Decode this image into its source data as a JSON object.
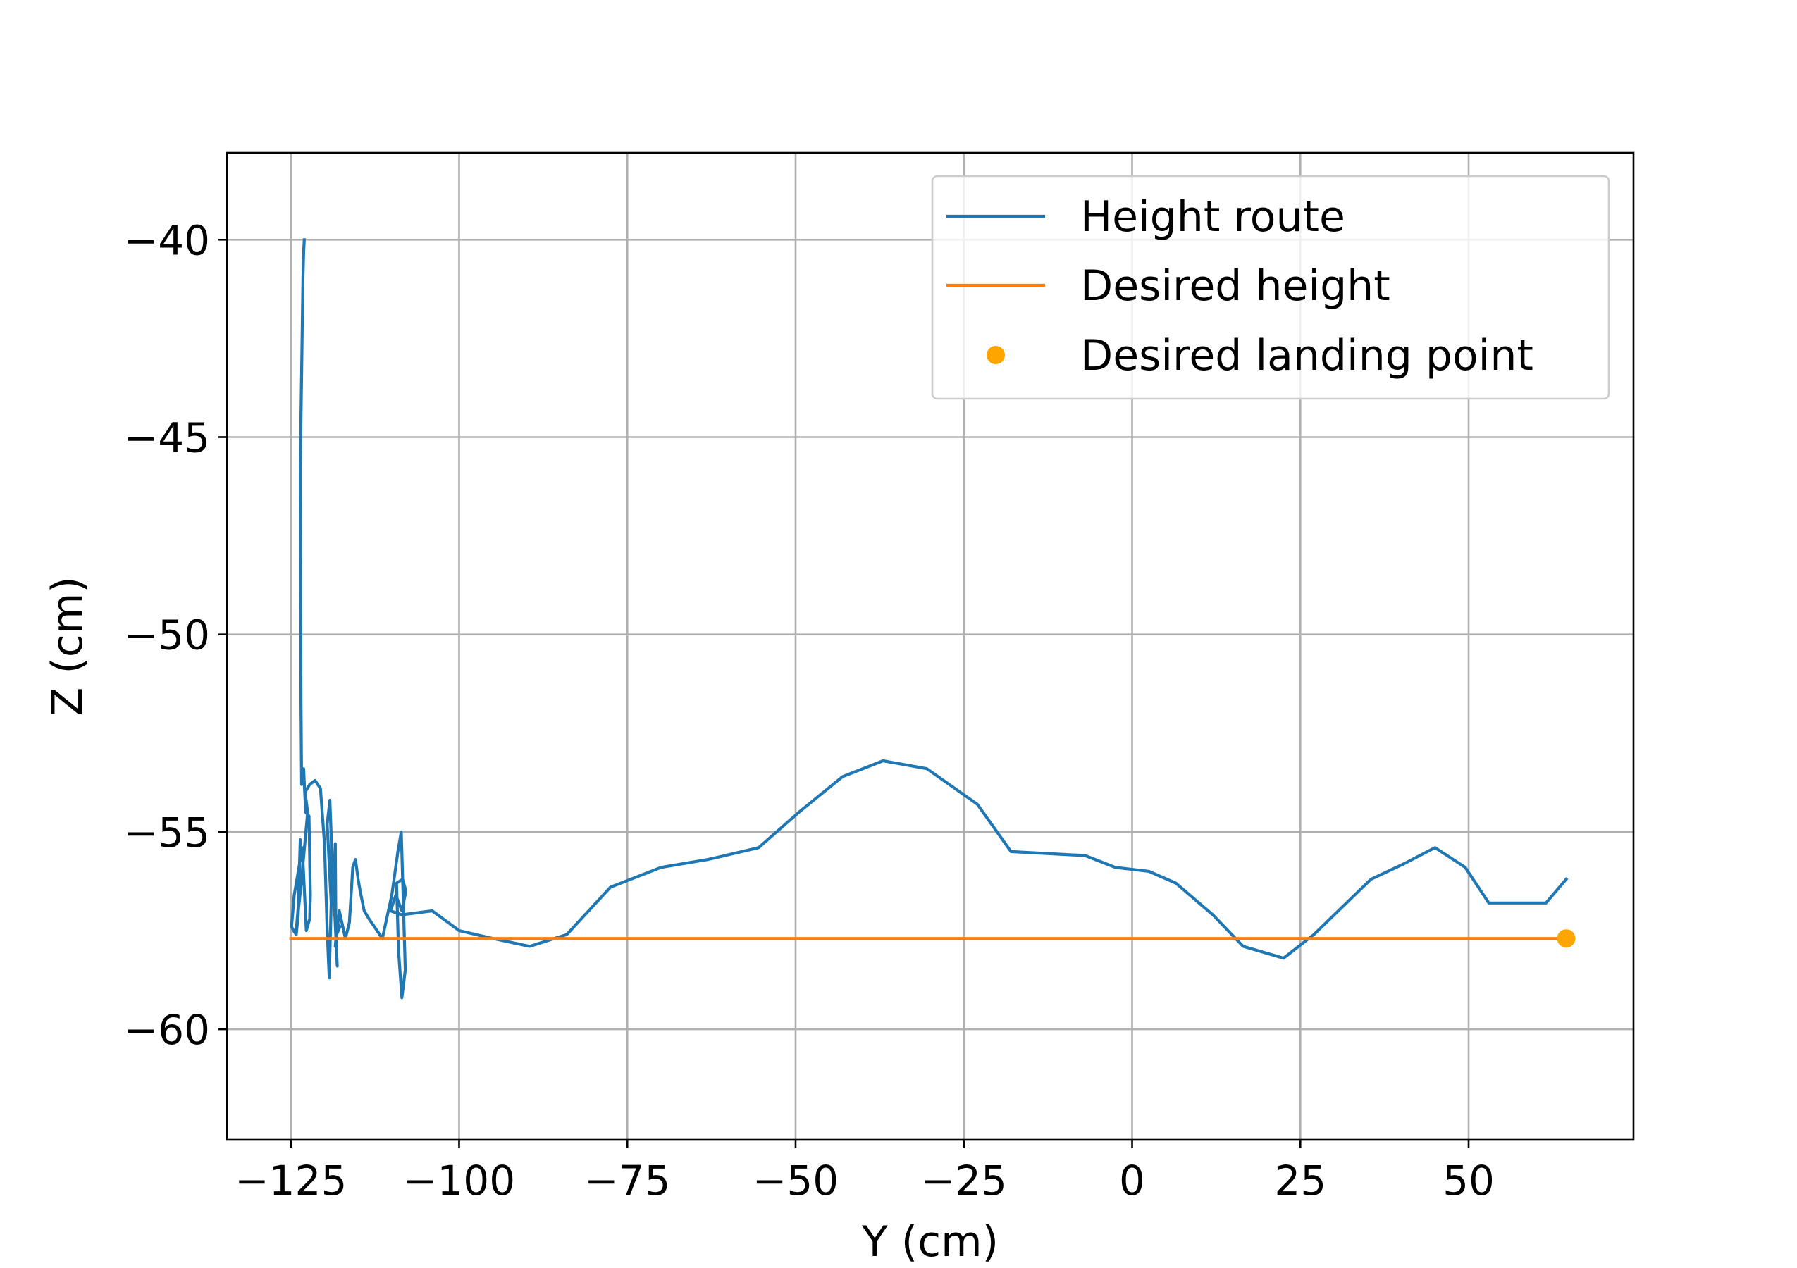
{
  "chart_data": {
    "type": "line",
    "title": "",
    "xlabel": "Y (cm)",
    "ylabel": "Z (cm)",
    "xlim": [
      -134.5,
      74.5
    ],
    "ylim": [
      -62.8,
      -37.8
    ],
    "grid": true,
    "legend_position": "top-right",
    "x_ticks": [
      {
        "value": -125,
        "label": "−125"
      },
      {
        "value": -100,
        "label": "−100"
      },
      {
        "value": -75,
        "label": "−75"
      },
      {
        "value": -50,
        "label": "−50"
      },
      {
        "value": -25,
        "label": "−25"
      },
      {
        "value": 0,
        "label": "0"
      },
      {
        "value": 25,
        "label": "25"
      },
      {
        "value": 50,
        "label": "50"
      }
    ],
    "y_ticks": [
      {
        "value": -40,
        "label": "−40"
      },
      {
        "value": -45,
        "label": "−45"
      },
      {
        "value": -50,
        "label": "−50"
      },
      {
        "value": -55,
        "label": "−55"
      },
      {
        "value": -60,
        "label": "−60"
      }
    ],
    "colors": {
      "height_route": "#1f77b4",
      "desired_height": "#ff7f0e",
      "landing_point": "#ffa500"
    },
    "series": [
      {
        "name": "Height route",
        "kind": "line",
        "x": [
          -123,
          -123.1,
          -123.2,
          -123.6,
          -123.5,
          -123.4,
          -123.1,
          -122.8,
          -122.3,
          -122.1,
          -122.2,
          -122.7,
          -123.3,
          -124.5,
          -124.9,
          -124.6,
          -124.2,
          -123.9,
          -123.6,
          -123.9,
          -124.2,
          -123.4,
          -122.5,
          -122.9,
          -122.2,
          -121.4,
          -120.6,
          -120.0,
          -119.6,
          -119.3,
          -119.0,
          -119.6,
          -119.2,
          -119.0,
          -118.8,
          -118.4,
          -118.3,
          -118.1,
          -118.6,
          -118.2,
          -117.7,
          -118.1,
          -118.4,
          -117.8,
          -116.9,
          -116.3,
          -115.8,
          -115.4,
          -115.0,
          -114.7,
          -114.1,
          -113.4,
          -112.6,
          -111.4,
          -110.0,
          -109.1,
          -108.6,
          -108.3,
          -108.0,
          -108.5,
          -109.0,
          -109.3,
          -108.4,
          -107.9,
          -108.5,
          -109.4,
          -110.2,
          -108.5,
          -104.0,
          -100.0,
          -95.0,
          -89.5,
          -84.0,
          -77.5,
          -70.0,
          -63.0,
          -55.5,
          -49.5,
          -43.0,
          -37.0,
          -30.5,
          -23.0,
          -18.0,
          -7.0,
          -2.5,
          2.5,
          6.5,
          12.0,
          16.5,
          22.5,
          27.0,
          35.5,
          40.5,
          45.0,
          49.5,
          53.0,
          56.5,
          61.5,
          64.5
        ],
        "y": [
          -40,
          -40.3,
          -41,
          -45.8,
          -51.6,
          -53.8,
          -53.4,
          -54.5,
          -54.6,
          -56.6,
          -57.2,
          -57.5,
          -55.4,
          -56.6,
          -57.4,
          -57.5,
          -57.6,
          -57.1,
          -55.2,
          -56.9,
          -57.5,
          -56.2,
          -54.5,
          -54.0,
          -53.8,
          -53.7,
          -53.9,
          -55.3,
          -57.5,
          -58.7,
          -56.8,
          -54.8,
          -54.2,
          -55.1,
          -56.8,
          -55.3,
          -57.8,
          -58.4,
          -56.6,
          -57.6,
          -57.4,
          -57.3,
          -57.9,
          -57.0,
          -57.7,
          -57.3,
          -55.9,
          -55.7,
          -56.2,
          -56.5,
          -57.0,
          -57.2,
          -57.4,
          -57.7,
          -56.6,
          -55.5,
          -55.0,
          -56.7,
          -58.5,
          -59.2,
          -58.0,
          -56.3,
          -56.2,
          -56.5,
          -57.0,
          -56.6,
          -57.0,
          -57.1,
          -57.0,
          -57.5,
          -57.7,
          -57.9,
          -57.6,
          -56.4,
          -55.9,
          -55.7,
          -55.4,
          -54.5,
          -53.6,
          -53.2,
          -53.4,
          -54.3,
          -55.5,
          -55.6,
          -55.9,
          -56.0,
          -56.3,
          -57.1,
          -57.9,
          -58.2,
          -57.6,
          -56.2,
          -55.8,
          -55.4,
          -55.9,
          -56.8,
          -56.8,
          -56.8,
          -56.2
        ]
      },
      {
        "name": "Desired height",
        "kind": "line",
        "x": [
          -125,
          64.5
        ],
        "y": [
          -57.7,
          -57.7
        ]
      },
      {
        "name": "Desired landing point",
        "kind": "point",
        "x": [
          64.5
        ],
        "y": [
          -57.7
        ]
      }
    ]
  }
}
